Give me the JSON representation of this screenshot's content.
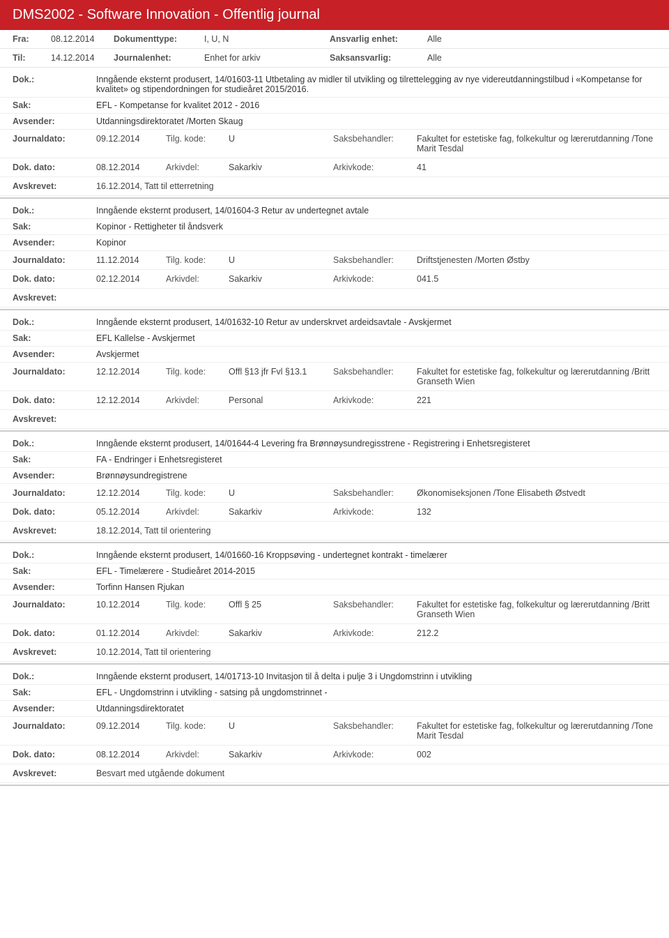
{
  "header": {
    "title": "DMS2002 - Software Innovation - Offentlig journal"
  },
  "meta": {
    "row1": {
      "l1": "Fra:",
      "v1": "08.12.2014",
      "l2": "Dokumenttype:",
      "v2": "I, U, N",
      "l3": "Ansvarlig enhet:",
      "v3": "Alle"
    },
    "row2": {
      "l1": "Til:",
      "v1": "14.12.2014",
      "l2": "Journalenhet:",
      "v2": "Enhet for arkiv",
      "l3": "Saksansvarlig:",
      "v3": "Alle"
    }
  },
  "labels": {
    "dok": "Dok.:",
    "sak": "Sak:",
    "avsender": "Avsender:",
    "journaldato": "Journaldato:",
    "tilgkode": "Tilg. kode:",
    "saksbehandler": "Saksbehandler:",
    "dokdato": "Dok. dato:",
    "arkivdel": "Arkivdel:",
    "arkivkode": "Arkivkode:",
    "avskrevet": "Avskrevet:"
  },
  "entries": [
    {
      "dok": "Inngående eksternt produsert, 14/01603-11 Utbetaling av midler til utvikling og tilrettelegging av nye videreutdanningstilbud i «Kompetanse for kvalitet» og stipendordningen for studieåret 2015/2016.",
      "sak": "EFL - Kompetanse for kvalitet 2012 - 2016",
      "avsender": "Utdanningsdirektoratet /Morten  Skaug",
      "journaldato": "09.12.2014",
      "tilgkode": "U",
      "saksbehandler": "Fakultet for estetiske fag, folkekultur og lærerutdanning /Tone Marit Tesdal",
      "dokdato": "08.12.2014",
      "arkivdel": "Sakarkiv",
      "arkivkode": "41",
      "avskrevet": "16.12.2014, Tatt til etterretning"
    },
    {
      "dok": "Inngående eksternt produsert, 14/01604-3 Retur av undertegnet avtale",
      "sak": "Kopinor - Rettigheter til åndsverk",
      "avsender": "Kopinor",
      "journaldato": "11.12.2014",
      "tilgkode": "U",
      "saksbehandler": "Driftstjenesten /Morten Østby",
      "dokdato": "02.12.2014",
      "arkivdel": "Sakarkiv",
      "arkivkode": "041.5",
      "avskrevet": ""
    },
    {
      "dok": "Inngående eksternt produsert, 14/01632-10 Retur av underskrvet ardeidsavtale - Avskjermet",
      "sak": "EFL Kallelse - Avskjermet",
      "avsender": "Avskjermet",
      "journaldato": "12.12.2014",
      "tilgkode": "Offl §13 jfr Fvl §13.1",
      "saksbehandler": "Fakultet for estetiske fag, folkekultur og lærerutdanning /Britt Granseth Wien",
      "dokdato": "12.12.2014",
      "arkivdel": "Personal",
      "arkivkode": "221",
      "avskrevet": ""
    },
    {
      "dok": "Inngående eksternt produsert, 14/01644-4 Levering fra Brønnøysundregisstrene - Registrering i Enhetsregisteret",
      "sak": "FA - Endringer i Enhetsregisteret",
      "avsender": "Brønnøysundregistrene",
      "journaldato": "12.12.2014",
      "tilgkode": "U",
      "saksbehandler": "Økonomiseksjonen /Tone Elisabeth Østvedt",
      "dokdato": "05.12.2014",
      "arkivdel": "Sakarkiv",
      "arkivkode": "132",
      "avskrevet": "18.12.2014, Tatt til orientering"
    },
    {
      "dok": "Inngående eksternt produsert, 14/01660-16 Kroppsøving - undertegnet kontrakt - timelærer",
      "sak": "EFL - Timelærere - Studieåret 2014-2015",
      "avsender": "Torfinn Hansen Rjukan",
      "journaldato": "10.12.2014",
      "tilgkode": "Offl § 25",
      "saksbehandler": "Fakultet for estetiske fag, folkekultur og lærerutdanning /Britt Granseth Wien",
      "dokdato": "01.12.2014",
      "arkivdel": "Sakarkiv",
      "arkivkode": "212.2",
      "avskrevet": "10.12.2014, Tatt til orientering"
    },
    {
      "dok": "Inngående eksternt produsert, 14/01713-10 Invitasjon til å delta i pulje 3 i Ungdomstrinn i utvikling",
      "sak": "EFL - Ungdomstrinn i utvikling - satsing på ungdomstrinnet -",
      "avsender": "Utdanningsdirektoratet",
      "journaldato": "09.12.2014",
      "tilgkode": "U",
      "saksbehandler": "Fakultet for estetiske fag, folkekultur og lærerutdanning /Tone Marit Tesdal",
      "dokdato": "08.12.2014",
      "arkivdel": "Sakarkiv",
      "arkivkode": "002",
      "avskrevet": "Besvart med utgående dokument"
    }
  ]
}
